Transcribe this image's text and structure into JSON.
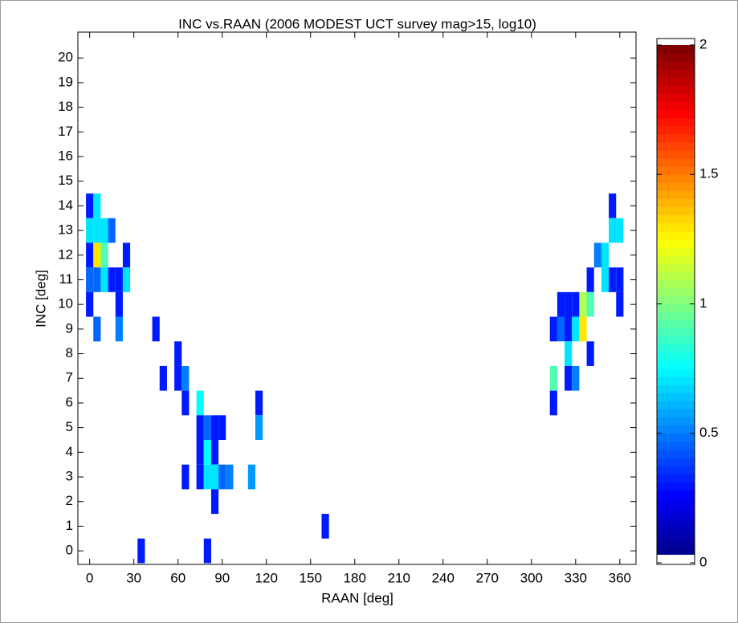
{
  "chart_data": {
    "type": "heatmap",
    "title": "INC vs.RAAN (2006 MODEST UCT survey mag>15, log10)",
    "x_label": "RAAN [deg]",
    "y_label": "INC [deg]",
    "xlim": [
      -8,
      371
    ],
    "ylim": [
      -0.55,
      21.05
    ],
    "xticks": [
      0,
      30,
      60,
      90,
      120,
      150,
      180,
      210,
      240,
      270,
      300,
      330,
      360
    ],
    "yticks": [
      0,
      1,
      2,
      3,
      4,
      5,
      6,
      7,
      8,
      9,
      10,
      11,
      12,
      13,
      14,
      15,
      16,
      17,
      18,
      19,
      20
    ],
    "cell_width": 5,
    "cell_height": 1,
    "colormap": "jet",
    "clim": [
      0,
      2
    ],
    "cticks": [
      0,
      0.5,
      1,
      1.5,
      2
    ],
    "x": [
      0,
      0,
      0,
      0,
      0,
      5,
      5,
      5,
      5,
      5,
      10,
      10,
      10,
      15,
      15,
      20,
      20,
      20,
      25,
      25,
      35,
      45,
      50,
      60,
      60,
      65,
      65,
      65,
      75,
      75,
      75,
      75,
      80,
      80,
      80,
      80,
      85,
      85,
      85,
      85,
      90,
      90,
      95,
      110,
      115,
      115,
      160,
      315,
      315,
      315,
      320,
      320,
      325,
      325,
      325,
      325,
      330,
      330,
      330,
      335,
      335,
      340,
      340,
      340,
      345,
      350,
      350,
      355,
      355,
      355,
      360,
      360,
      360
    ],
    "y": [
      14,
      13,
      12,
      11,
      10,
      14,
      13,
      12,
      11,
      9,
      13,
      12,
      11,
      13,
      11,
      11,
      10,
      9,
      12,
      11,
      0,
      9,
      7,
      8,
      7,
      7,
      6,
      3,
      6,
      5,
      4,
      3,
      5,
      4,
      3,
      0,
      5,
      4,
      3,
      2,
      5,
      3,
      3,
      3,
      6,
      5,
      1,
      9,
      7,
      6,
      10,
      9,
      10,
      9,
      8,
      7,
      10,
      9,
      7,
      10,
      9,
      11,
      10,
      8,
      12,
      12,
      11,
      14,
      13,
      11,
      13,
      11,
      10
    ],
    "values": [
      0.3,
      0.7,
      0.3,
      0.45,
      0.3,
      0.7,
      0.7,
      1.3,
      0.45,
      0.45,
      0.7,
      0.9,
      0.7,
      0.45,
      0.3,
      0.3,
      0.3,
      0.5,
      0.3,
      0.7,
      0.3,
      0.3,
      0.3,
      0.3,
      0.3,
      0.5,
      0.3,
      0.3,
      0.75,
      0.3,
      0.3,
      0.3,
      0.45,
      0.75,
      0.7,
      0.3,
      0.3,
      0.3,
      0.7,
      0.3,
      0.3,
      0.45,
      0.5,
      0.55,
      0.3,
      0.55,
      0.3,
      0.3,
      0.9,
      0.3,
      0.3,
      0.45,
      0.3,
      0.3,
      0.7,
      0.3,
      0.3,
      0.7,
      0.5,
      1.1,
      1.3,
      0.3,
      0.9,
      0.3,
      0.5,
      0.7,
      0.7,
      0.3,
      0.7,
      0.3,
      0.7,
      0.3,
      0.3
    ]
  }
}
